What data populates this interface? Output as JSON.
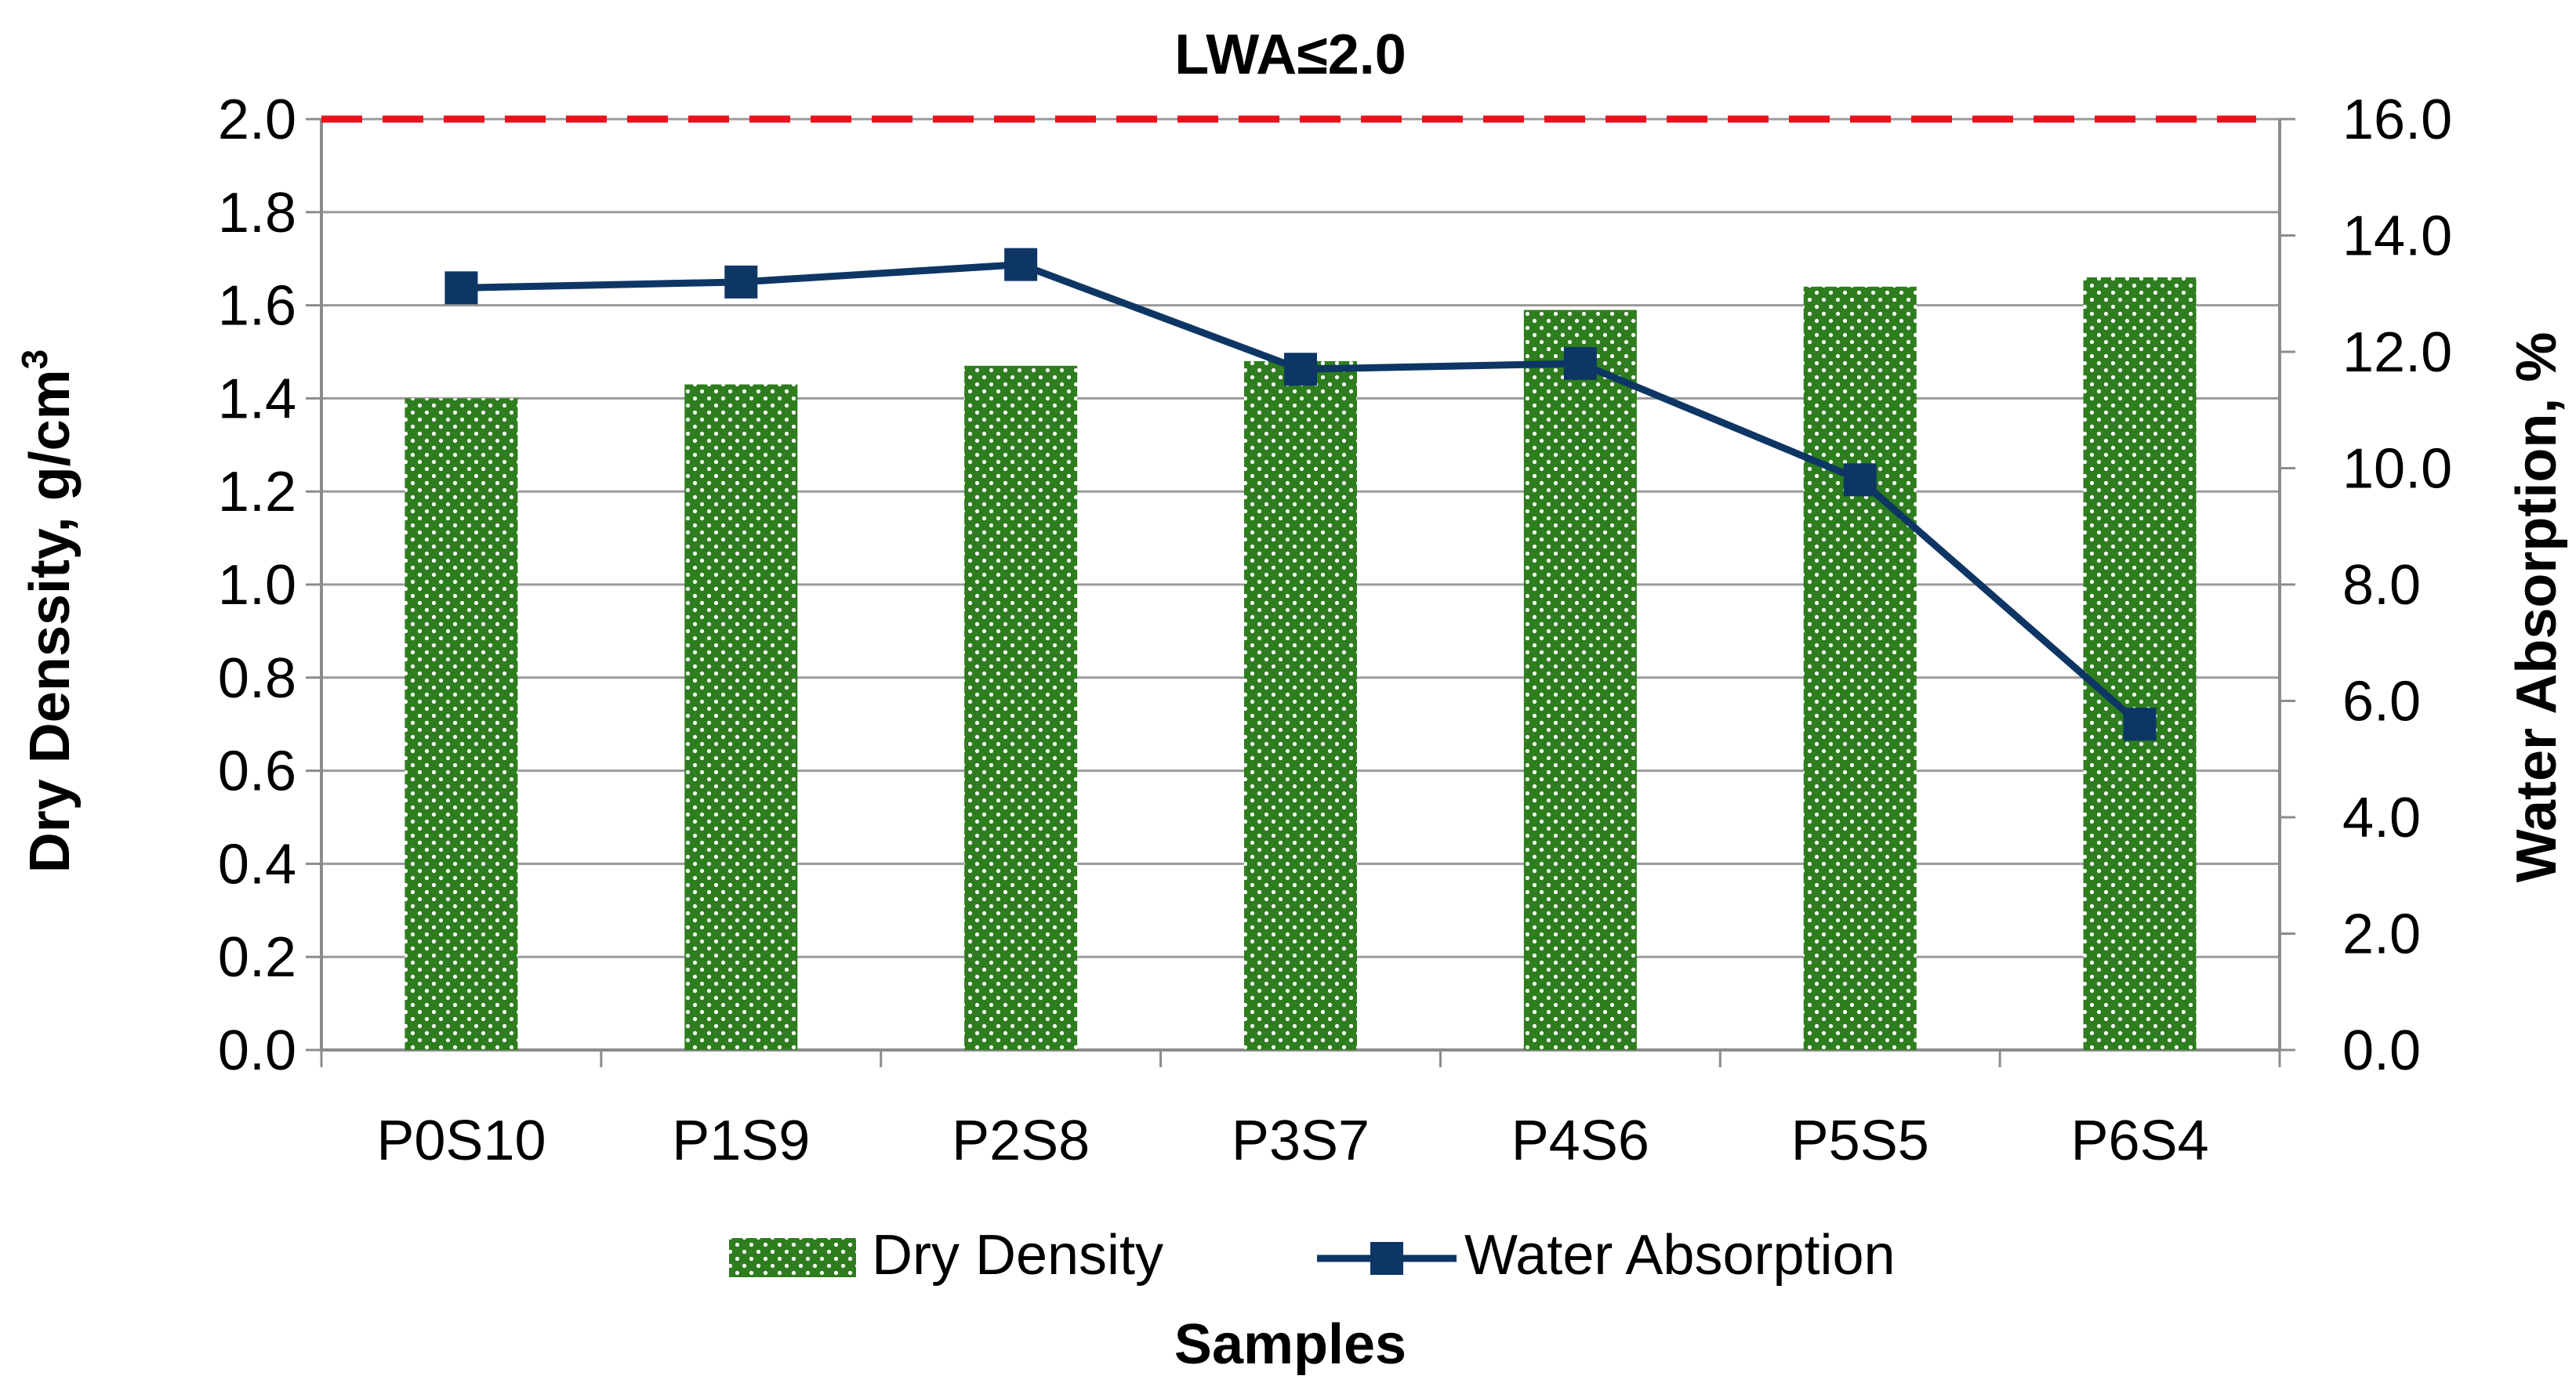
{
  "chart_data": {
    "type": "bar+line",
    "title": "LWA≤2.0",
    "xlabel": "Samples",
    "ylabel_left": "Dry Denssity, g/cm",
    "ylabel_left_sup": "3",
    "ylabel_right": "Water Absorption, %",
    "categories": [
      "P0S10",
      "P1S9",
      "P2S8",
      "P3S7",
      "P4S6",
      "P5S5",
      "P6S4"
    ],
    "series": [
      {
        "name": "Dry Density",
        "type": "bar",
        "axis": "left",
        "values": [
          1.4,
          1.43,
          1.47,
          1.48,
          1.59,
          1.64,
          1.66
        ],
        "color": "#2e7d1e"
      },
      {
        "name": "Water Absorption",
        "type": "line",
        "axis": "right",
        "values": [
          13.1,
          13.2,
          13.5,
          11.7,
          11.8,
          9.8,
          5.6
        ],
        "color": "#0d3664"
      }
    ],
    "reference_line": {
      "axis": "left",
      "value": 2.0,
      "color": "#e8111d",
      "style": "dashed"
    },
    "ylim_left": [
      0.0,
      2.0
    ],
    "yticks_left": [
      "0.0",
      "0.2",
      "0.4",
      "0.6",
      "0.8",
      "1.0",
      "1.2",
      "1.4",
      "1.6",
      "1.8",
      "2.0"
    ],
    "ylim_right": [
      0.0,
      16.0
    ],
    "yticks_right": [
      "0.0",
      "2.0",
      "4.0",
      "6.0",
      "8.0",
      "10.0",
      "12.0",
      "14.0",
      "16.0"
    ],
    "grid": true,
    "legend": "bottom"
  }
}
